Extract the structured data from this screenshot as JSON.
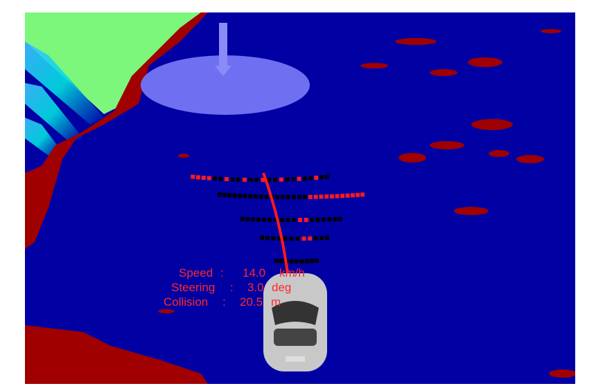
{
  "overlay": {
    "lines": [
      {
        "label": "Speed",
        "value": "14.0",
        "unit": "km/h"
      },
      {
        "label": "Steering",
        "value": "3.0",
        "unit": "deg"
      },
      {
        "label": "Collision",
        "value": "20.5",
        "unit": "m"
      }
    ]
  }
}
